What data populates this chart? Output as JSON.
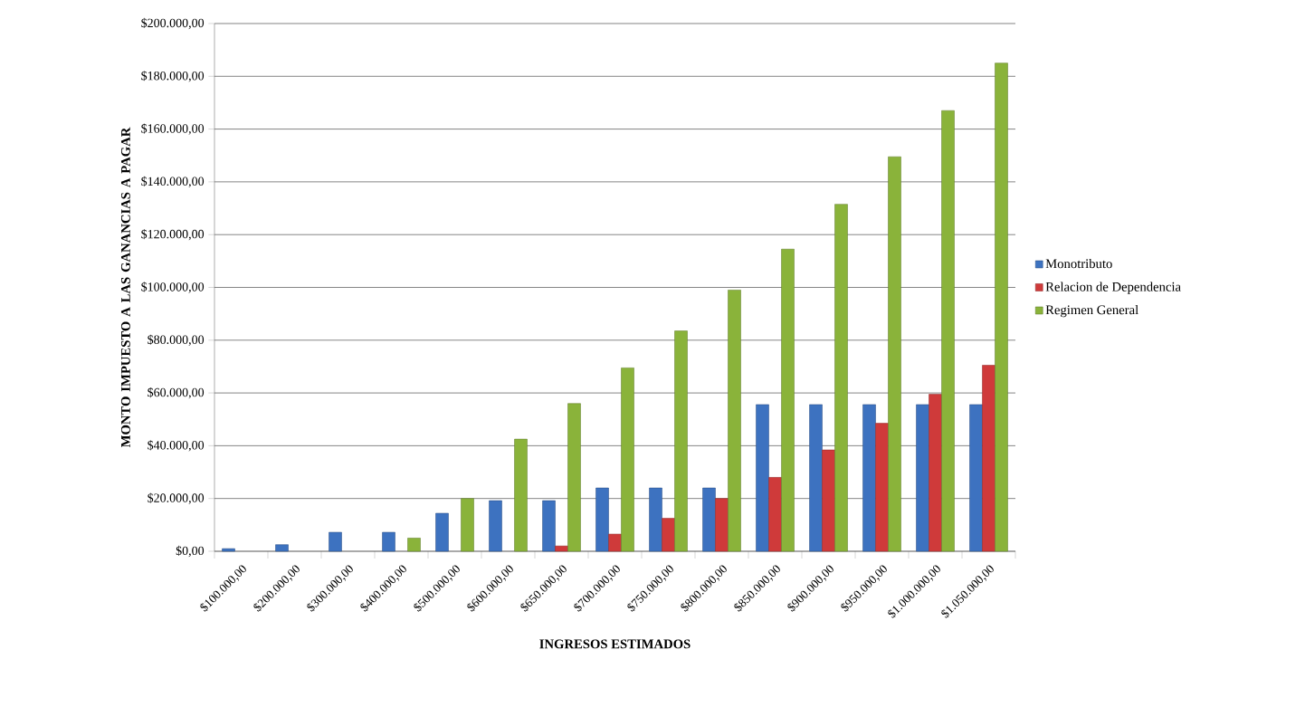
{
  "chart_data": {
    "type": "bar",
    "xlabel": "INGRESOS ESTIMADOS",
    "ylabel": "MONTO IMPUESTO A LAS GANANCIAS A PAGAR",
    "categories": [
      "$100.000,00",
      "$200.000,00",
      "$300.000,00",
      "$400.000,00",
      "$500.000,00",
      "$600.000,00",
      "$650.000,00",
      "$700.000,00",
      "$750.000,00",
      "$800.000,00",
      "$850.000,00",
      "$900.000,00",
      "$950.000,00",
      "$1.000.000,00",
      "$1.050.000,00"
    ],
    "series": [
      {
        "name": "Monotributo",
        "color": "#3d72c0",
        "values": [
          1000,
          2500,
          7200,
          7200,
          14400,
          19200,
          19200,
          24000,
          24000,
          24000,
          55600,
          55600,
          55600,
          55600,
          55600
        ]
      },
      {
        "name": "Relacion de Dependencia",
        "color": "#cf3a3a",
        "values": [
          null,
          null,
          null,
          null,
          null,
          null,
          2000,
          6500,
          12500,
          20000,
          28000,
          38400,
          48500,
          59500,
          70500
        ]
      },
      {
        "name": "Regimen General",
        "color": "#8ab33a",
        "values": [
          null,
          null,
          null,
          5000,
          20000,
          42500,
          56000,
          69500,
          83500,
          99000,
          114500,
          131500,
          149500,
          167000,
          185000
        ]
      }
    ],
    "ylim": [
      0,
      200000
    ],
    "yticks": [
      {
        "value": 0,
        "label": "$0,00"
      },
      {
        "value": 20000,
        "label": "$20.000,00"
      },
      {
        "value": 40000,
        "label": "$40.000,00"
      },
      {
        "value": 60000,
        "label": "$60.000,00"
      },
      {
        "value": 80000,
        "label": "$80.000,00"
      },
      {
        "value": 100000,
        "label": "$100.000,00"
      },
      {
        "value": 120000,
        "label": "$120.000,00"
      },
      {
        "value": 140000,
        "label": "$140.000,00"
      },
      {
        "value": 160000,
        "label": "$160.000,00"
      },
      {
        "value": 180000,
        "label": "$180.000,00"
      },
      {
        "value": 200000,
        "label": "$200.000,00"
      }
    ],
    "grid": "y",
    "legend": "right"
  }
}
